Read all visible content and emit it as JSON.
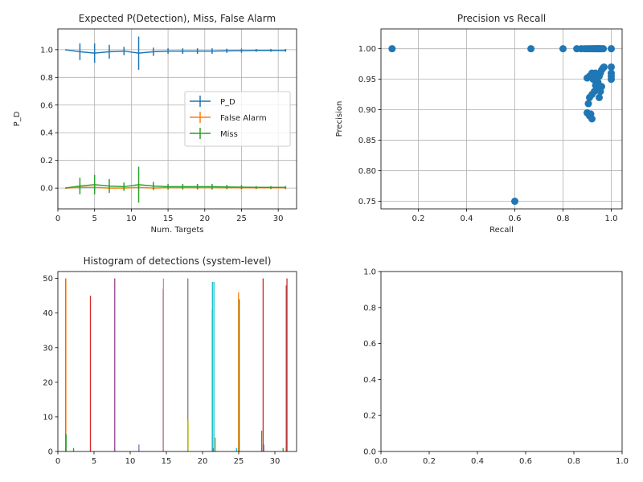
{
  "colors": {
    "tab": [
      "#1f77b4",
      "#ff7f0e",
      "#2ca02c",
      "#d62728",
      "#9467bd",
      "#8c564b",
      "#e377c2",
      "#7f7f7f",
      "#bcbd22",
      "#17becf"
    ],
    "grid": "#b0b0b0",
    "axes": "#000000"
  },
  "chart_data": [
    {
      "type": "line",
      "subtype": "errorbar",
      "title": "Expected P(Detection), Miss, False Alarm",
      "xlabel": "Num. Targets",
      "ylabel": "P_D",
      "xlim": [
        0,
        32.5
      ],
      "ylim": [
        -0.15,
        1.15
      ],
      "xticks": [
        0,
        5,
        10,
        15,
        20,
        25,
        30
      ],
      "yticks": [
        0.0,
        0.2,
        0.4,
        0.6,
        0.8,
        1.0
      ],
      "ytick_labels": [
        "0.0",
        "0.2",
        "0.4",
        "0.6",
        "0.8",
        "1.0"
      ],
      "grid": true,
      "legend_position": "center-right",
      "x": [
        1,
        3,
        5,
        7,
        9,
        11,
        13,
        15,
        17,
        19,
        21,
        23,
        25,
        27,
        29,
        31
      ],
      "series": [
        {
          "name": "P_D",
          "color": "#1f77b4",
          "values": [
            1.0,
            0.985,
            0.975,
            0.985,
            0.99,
            0.975,
            0.985,
            0.99,
            0.99,
            0.99,
            0.99,
            0.992,
            0.993,
            0.995,
            0.995,
            0.995
          ],
          "err": [
            0.0,
            0.06,
            0.07,
            0.05,
            0.03,
            0.12,
            0.03,
            0.02,
            0.02,
            0.02,
            0.02,
            0.015,
            0.015,
            0.01,
            0.01,
            0.01
          ]
        },
        {
          "name": "False Alarm",
          "color": "#ff7f0e",
          "values": [
            0.0,
            0.005,
            0.005,
            0.0,
            0.0,
            0.005,
            0.0,
            0.003,
            0.003,
            0.003,
            0.003,
            0.002,
            0.002,
            0.002,
            0.002,
            0.002
          ],
          "err": [
            0.0,
            0.02,
            0.02,
            0.01,
            0.01,
            0.02,
            0.01,
            0.01,
            0.01,
            0.01,
            0.01,
            0.01,
            0.01,
            0.01,
            0.01,
            0.01
          ]
        },
        {
          "name": "Miss",
          "color": "#2ca02c",
          "values": [
            0.0,
            0.015,
            0.025,
            0.015,
            0.01,
            0.025,
            0.015,
            0.01,
            0.01,
            0.01,
            0.01,
            0.008,
            0.007,
            0.005,
            0.005,
            0.005
          ],
          "err": [
            0.0,
            0.06,
            0.07,
            0.05,
            0.03,
            0.13,
            0.03,
            0.02,
            0.02,
            0.02,
            0.02,
            0.015,
            0.015,
            0.01,
            0.01,
            0.01
          ]
        }
      ]
    },
    {
      "type": "scatter",
      "title": "Precision vs Recall",
      "xlabel": "Recall",
      "ylabel": "Precision",
      "xlim": [
        0.045,
        1.045
      ],
      "ylim": [
        0.7375,
        1.0325
      ],
      "xticks": [
        0.2,
        0.4,
        0.6,
        0.8,
        1.0
      ],
      "xtick_labels": [
        "0.2",
        "0.4",
        "0.6",
        "0.8",
        "1.0"
      ],
      "yticks": [
        0.75,
        0.8,
        0.85,
        0.9,
        0.95,
        1.0
      ],
      "ytick_labels": [
        "0.75",
        "0.80",
        "0.85",
        "0.90",
        "0.95",
        "1.00"
      ],
      "grid": true,
      "color": "#1f77b4",
      "points": [
        [
          0.091,
          1.0
        ],
        [
          0.667,
          1.0
        ],
        [
          0.8,
          1.0
        ],
        [
          0.6,
          0.75
        ],
        [
          0.857,
          1.0
        ],
        [
          0.875,
          1.0
        ],
        [
          0.889,
          1.0
        ],
        [
          0.9,
          1.0
        ],
        [
          0.909,
          1.0
        ],
        [
          0.917,
          1.0
        ],
        [
          0.923,
          1.0
        ],
        [
          0.929,
          1.0
        ],
        [
          0.933,
          1.0
        ],
        [
          0.938,
          1.0
        ],
        [
          0.941,
          1.0
        ],
        [
          0.944,
          1.0
        ],
        [
          0.947,
          1.0
        ],
        [
          0.95,
          1.0
        ],
        [
          0.955,
          1.0
        ],
        [
          0.96,
          1.0
        ],
        [
          0.967,
          1.0
        ],
        [
          1.0,
          1.0
        ],
        [
          0.9,
          0.895
        ],
        [
          0.91,
          0.89
        ],
        [
          0.92,
          0.885
        ],
        [
          0.915,
          0.893
        ],
        [
          0.905,
          0.91
        ],
        [
          0.91,
          0.92
        ],
        [
          0.92,
          0.925
        ],
        [
          0.93,
          0.93
        ],
        [
          0.935,
          0.94
        ],
        [
          0.94,
          0.935
        ],
        [
          0.945,
          0.945
        ],
        [
          0.95,
          0.92
        ],
        [
          0.955,
          0.93
        ],
        [
          0.96,
          0.938
        ],
        [
          0.925,
          0.95
        ],
        [
          0.93,
          0.955
        ],
        [
          0.935,
          0.96
        ],
        [
          0.94,
          0.95
        ],
        [
          0.95,
          0.955
        ],
        [
          0.955,
          0.96
        ],
        [
          0.96,
          0.965
        ],
        [
          0.965,
          0.968
        ],
        [
          0.97,
          0.97
        ],
        [
          0.9,
          0.952
        ],
        [
          0.91,
          0.955
        ],
        [
          0.92,
          0.96
        ],
        [
          1.0,
          0.95
        ],
        [
          1.0,
          0.96
        ],
        [
          1.0,
          0.97
        ],
        [
          1.0,
          0.955
        ]
      ]
    },
    {
      "type": "bar",
      "subtype": "histogram",
      "title": "Histogram of detections (system-level)",
      "xlim": [
        0,
        33
      ],
      "ylim": [
        0,
        52
      ],
      "xticks": [
        0,
        5,
        10,
        15,
        20,
        25,
        30
      ],
      "yticks": [
        0,
        10,
        20,
        30,
        40,
        50
      ],
      "bin_edges": [
        1.0,
        4.33,
        7.67,
        11.0,
        14.33,
        17.67,
        21.0,
        24.33,
        27.67,
        31.0
      ],
      "bar_width": 0.11,
      "series": [
        {
          "color": "#1f77b4",
          "counts": [
            50,
            0,
            0,
            0,
            0,
            0,
            0,
            0,
            0,
            0
          ]
        },
        {
          "color": "#ff7f0e",
          "counts": [
            50,
            0,
            0,
            0,
            0,
            0,
            0,
            0,
            0,
            0
          ]
        },
        {
          "color": "#2ca02c",
          "counts": [
            5,
            0,
            0,
            0,
            0,
            0,
            0,
            0,
            0,
            1
          ]
        },
        {
          "color": "#d62728",
          "counts": [
            0,
            45,
            50,
            0,
            0,
            0,
            0,
            0,
            0,
            0
          ]
        },
        {
          "color": "#9467bd",
          "counts": [
            0,
            0,
            50,
            2,
            0,
            0,
            0,
            0,
            0,
            0
          ]
        },
        {
          "color": "#8c564b",
          "counts": [
            0,
            0,
            0,
            0,
            47,
            0,
            0,
            0,
            0,
            0
          ]
        },
        {
          "color": "#e377c2",
          "counts": [
            0,
            0,
            0,
            0,
            50,
            0,
            0,
            0,
            0,
            0
          ]
        },
        {
          "color": "#7f7f7f",
          "counts": [
            0,
            0,
            0,
            0,
            0,
            50,
            0,
            0,
            0,
            0
          ]
        },
        {
          "color": "#bcbd22",
          "counts": [
            0,
            0,
            0,
            0,
            0,
            9,
            41,
            0,
            0,
            0
          ]
        },
        {
          "color": "#17becf",
          "counts": [
            0,
            0,
            0,
            0,
            0,
            0,
            49,
            1,
            0,
            0
          ]
        }
      ],
      "extra_bars": [
        {
          "x": 2.1,
          "value": 1,
          "color": "#2ca02c"
        },
        {
          "x": 21.4,
          "value": 1,
          "color": "#1f77b4"
        },
        {
          "x": 21.5,
          "value": 49,
          "color": "#17becf"
        },
        {
          "x": 21.7,
          "value": 4,
          "color": "#ff7f0e"
        },
        {
          "x": 24.9,
          "value": 46,
          "color": "#ff7f0e"
        },
        {
          "x": 25.0,
          "value": 44,
          "color": "#2ca02c"
        },
        {
          "x": 28.1,
          "value": 6,
          "color": "#2ca02c"
        },
        {
          "x": 28.3,
          "value": 50,
          "color": "#d62728"
        },
        {
          "x": 28.4,
          "value": 2,
          "color": "#9467bd"
        },
        {
          "x": 31.5,
          "value": 48,
          "color": "#8c564b"
        },
        {
          "x": 31.6,
          "value": 50,
          "color": "#d62728"
        }
      ],
      "grid": false
    },
    {
      "type": "scatter",
      "title": "",
      "xlim": [
        0,
        1
      ],
      "ylim": [
        0,
        1
      ],
      "xticks": [
        0.0,
        0.2,
        0.4,
        0.6,
        0.8,
        1.0
      ],
      "xtick_labels": [
        "0.0",
        "0.2",
        "0.4",
        "0.6",
        "0.8",
        "1.0"
      ],
      "yticks": [
        0.0,
        0.2,
        0.4,
        0.6,
        0.8,
        1.0
      ],
      "ytick_labels": [
        "0.0",
        "0.2",
        "0.4",
        "0.6",
        "0.8",
        "1.0"
      ],
      "grid": false,
      "points": []
    }
  ]
}
